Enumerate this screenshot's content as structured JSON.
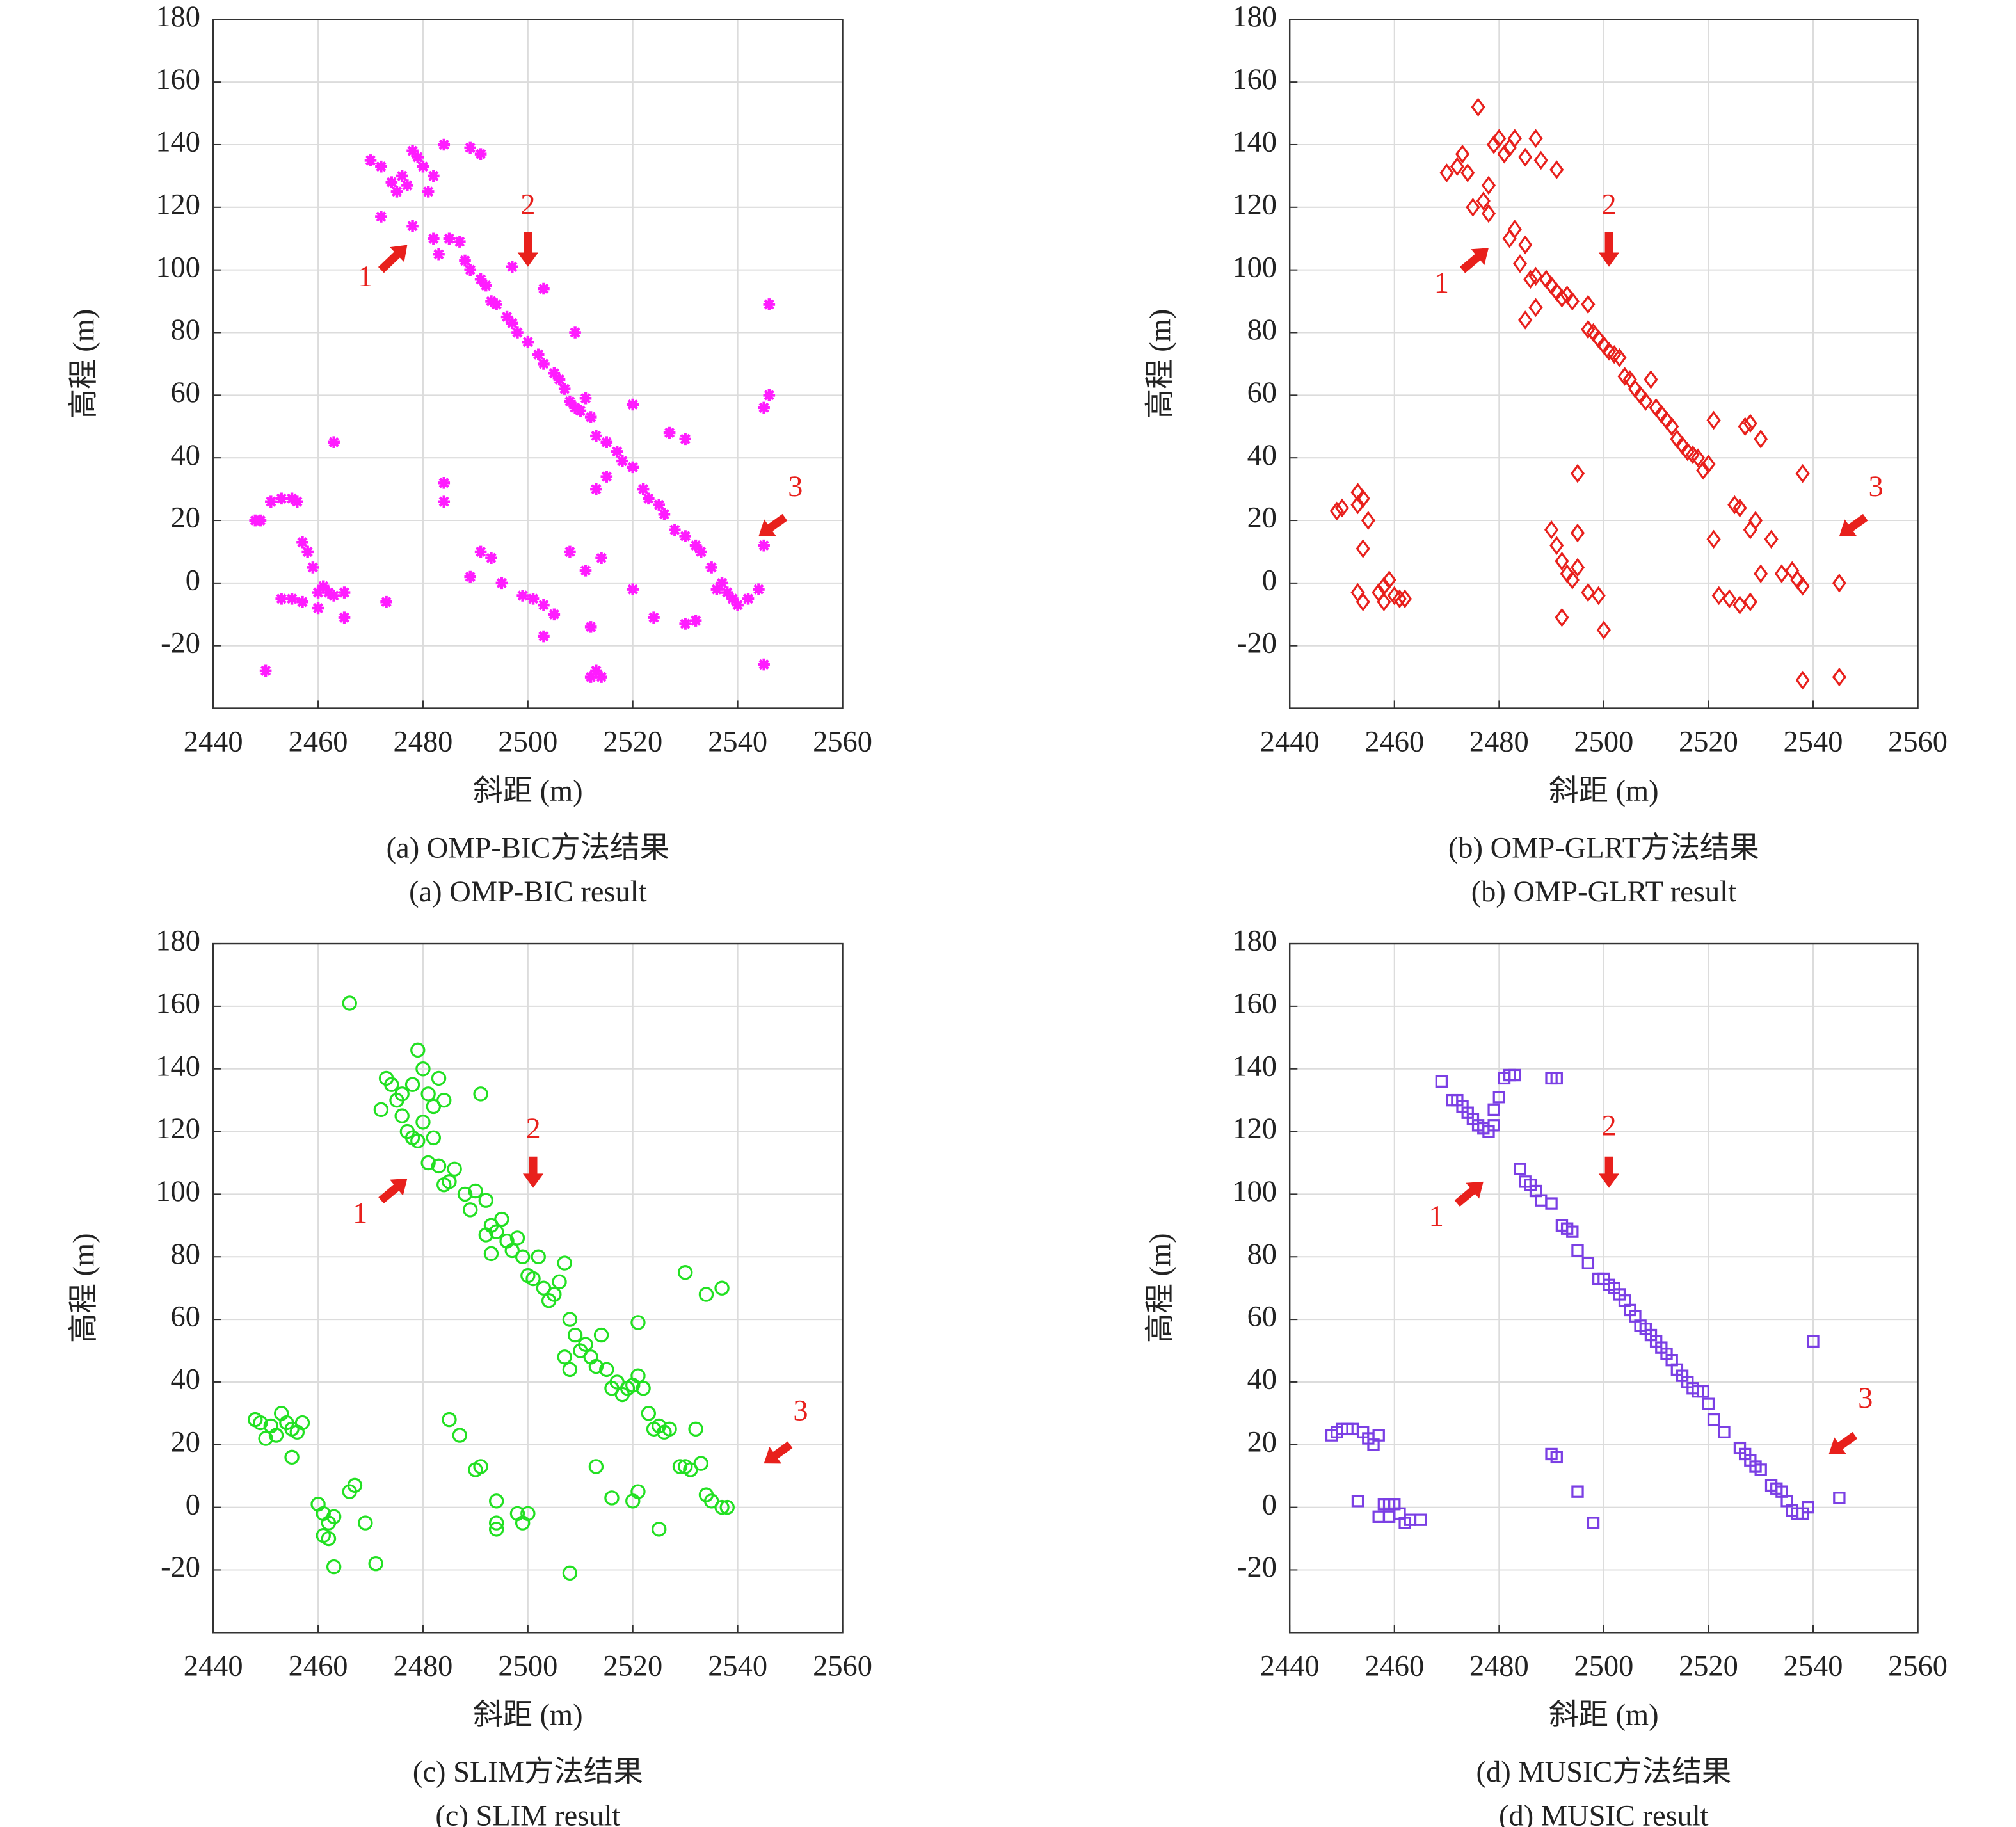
{
  "chart_data": [
    {
      "type": "scatter",
      "caption": [
        "(a) OMP-BIC方法结果",
        "(a) OMP-BIC result"
      ],
      "xlabel": "斜距 (m)",
      "ylabel": "高程 (m)",
      "color": "#ff1cff",
      "marker": "asterisk",
      "grid": true,
      "xlim": [
        2440,
        2560
      ],
      "xticks": [
        2440,
        2460,
        2480,
        2500,
        2520,
        2540,
        2560
      ],
      "ylim": [
        -40,
        180
      ],
      "yticks": [
        -20,
        0,
        20,
        40,
        60,
        80,
        100,
        120,
        140,
        160,
        180
      ],
      "annotations": [
        "1",
        "2",
        "3"
      ],
      "x": [
        2470,
        2472,
        2474,
        2475,
        2476,
        2477,
        2478,
        2479,
        2480,
        2481,
        2482,
        2484,
        2489,
        2491,
        2472,
        2478,
        2482,
        2483,
        2485,
        2487,
        2488,
        2489,
        2491,
        2492,
        2493,
        2494,
        2496,
        2497,
        2498,
        2500,
        2502,
        2503,
        2505,
        2506,
        2507,
        2508,
        2509,
        2510,
        2512,
        2513,
        2515,
        2517,
        2518,
        2520,
        2522,
        2523,
        2525,
        2526,
        2528,
        2530,
        2532,
        2533,
        2535,
        2537,
        2538,
        2539,
        2540,
        2542,
        2544,
        2545,
        2497,
        2503,
        2509,
        2511,
        2513,
        2515,
        2520,
        2527,
        2530,
        2536,
        2448,
        2449,
        2451,
        2453,
        2455,
        2456,
        2457,
        2458,
        2459,
        2455,
        2453,
        2457,
        2460,
        2461,
        2462,
        2463,
        2465,
        2460,
        2465,
        2463,
        2450,
        2473,
        2484,
        2484,
        2489,
        2491,
        2493,
        2495,
        2499,
        2501,
        2503,
        2505,
        2503,
        2508,
        2511,
        2512,
        2513,
        2514,
        2512,
        2514,
        2520,
        2524,
        2530,
        2532,
        2546,
        2546,
        2545,
        2545
      ],
      "values": [
        135,
        133,
        128,
        125,
        130,
        127,
        138,
        136,
        133,
        125,
        130,
        140,
        139,
        137,
        117,
        114,
        110,
        105,
        110,
        109,
        103,
        100,
        97,
        95,
        90,
        89,
        85,
        83,
        80,
        77,
        73,
        70,
        67,
        65,
        62,
        58,
        56,
        55,
        53,
        47,
        45,
        42,
        39,
        37,
        30,
        27,
        25,
        22,
        17,
        15,
        12,
        10,
        5,
        0,
        -3,
        -5,
        -7,
        -5,
        -2,
        12,
        101,
        94,
        80,
        59,
        30,
        34,
        57,
        48,
        46,
        -2,
        20,
        20,
        26,
        27,
        27,
        26,
        13,
        10,
        5,
        -5,
        -5,
        -6,
        -3,
        -1,
        -3,
        -4,
        -3,
        -8,
        -11,
        45,
        -28,
        -6,
        32,
        26,
        2,
        10,
        8,
        0,
        -4,
        -5,
        -7,
        -10,
        -17,
        10,
        4,
        -14,
        -28,
        -30,
        -30,
        8,
        -2,
        -11,
        -13,
        -12,
        89,
        60,
        56,
        -26
      ]
    },
    {
      "type": "scatter",
      "caption": [
        "(b) OMP-GLRT方法结果",
        "(b) OMP-GLRT result"
      ],
      "xlabel": "斜距 (m)",
      "ylabel": "高程 (m)",
      "color": "#e8201c",
      "marker": "diamond",
      "grid": true,
      "xlim": [
        2440,
        2560
      ],
      "xticks": [
        2440,
        2460,
        2480,
        2500,
        2520,
        2540,
        2560
      ],
      "ylim": [
        -40,
        180
      ],
      "yticks": [
        -20,
        0,
        20,
        40,
        60,
        80,
        100,
        120,
        140,
        160,
        180
      ],
      "annotations": [
        "1",
        "2",
        "3"
      ],
      "x": [
        2470,
        2472,
        2474,
        2475,
        2476,
        2477,
        2478,
        2479,
        2480,
        2481,
        2482,
        2483,
        2485,
        2487,
        2488,
        2491,
        2478,
        2473,
        2482,
        2483,
        2485,
        2484,
        2486,
        2487,
        2489,
        2490,
        2491,
        2492,
        2493,
        2494,
        2497,
        2487,
        2485,
        2497,
        2498,
        2499,
        2500,
        2501,
        2502,
        2503,
        2504,
        2505,
        2506,
        2507,
        2508,
        2509,
        2510,
        2511,
        2512,
        2513,
        2514,
        2515,
        2516,
        2517,
        2518,
        2519,
        2520,
        2521,
        2525,
        2526,
        2527,
        2528,
        2530,
        2521,
        2522,
        2524,
        2526,
        2528,
        2528,
        2529,
        2530,
        2532,
        2534,
        2536,
        2537,
        2538,
        2538,
        2538,
        2545,
        2545,
        2449,
        2450,
        2453,
        2454,
        2453,
        2455,
        2454,
        2453,
        2454,
        2457,
        2458,
        2459,
        2460,
        2461,
        2462,
        2458,
        2490,
        2491,
        2492,
        2493,
        2494,
        2495,
        2495,
        2495,
        2497,
        2499,
        2492,
        2500
      ],
      "values": [
        131,
        133,
        131,
        120,
        152,
        122,
        118,
        140,
        142,
        137,
        139,
        142,
        136,
        142,
        135,
        132,
        127,
        137,
        110,
        113,
        108,
        102,
        97,
        98,
        97,
        95,
        93,
        91,
        92,
        90,
        89,
        88,
        84,
        81,
        80,
        78,
        76,
        74,
        73,
        72,
        66,
        65,
        62,
        60,
        58,
        65,
        56,
        54,
        52,
        50,
        46,
        44,
        42,
        41,
        40,
        36,
        38,
        52,
        25,
        24,
        50,
        51,
        46,
        14,
        -4,
        -5,
        -7,
        -6,
        17,
        20,
        3,
        14,
        3,
        4,
        1,
        -1,
        35,
        -31,
        0,
        -30,
        23,
        24,
        25,
        27,
        29,
        20,
        11,
        -3,
        -6,
        -3,
        -1,
        1,
        -4,
        -5,
        -5,
        -6,
        17,
        12,
        7,
        3,
        1,
        5,
        16,
        35,
        -3,
        -4,
        -11,
        -15
      ]
    },
    {
      "type": "scatter",
      "caption": [
        "(c) SLIM方法结果",
        "(c) SLIM result"
      ],
      "xlabel": "斜距 (m)",
      "ylabel": "高程 (m)",
      "color": "#22e022",
      "marker": "circle",
      "grid": true,
      "xlim": [
        2440,
        2560
      ],
      "xticks": [
        2440,
        2460,
        2480,
        2500,
        2520,
        2540,
        2560
      ],
      "ylim": [
        -40,
        180
      ],
      "yticks": [
        -20,
        0,
        20,
        40,
        60,
        80,
        100,
        120,
        140,
        160,
        180
      ],
      "annotations": [
        "1",
        "2",
        "3"
      ],
      "x": [
        2466,
        2472,
        2473,
        2474,
        2475,
        2476,
        2477,
        2478,
        2479,
        2480,
        2481,
        2482,
        2483,
        2484,
        2476,
        2478,
        2479,
        2480,
        2482,
        2481,
        2483,
        2484,
        2485,
        2486,
        2488,
        2489,
        2490,
        2491,
        2492,
        2493,
        2494,
        2495,
        2496,
        2497,
        2498,
        2499,
        2500,
        2501,
        2502,
        2503,
        2504,
        2505,
        2506,
        2507,
        2508,
        2509,
        2510,
        2511,
        2512,
        2513,
        2514,
        2515,
        2516,
        2517,
        2518,
        2519,
        2520,
        2521,
        2522,
        2523,
        2524,
        2525,
        2526,
        2527,
        2529,
        2530,
        2531,
        2532,
        2533,
        2534,
        2535,
        2537,
        2538,
        2530,
        2534,
        2537,
        2521,
        2507,
        2508,
        2493,
        2492,
        2448,
        2449,
        2450,
        2451,
        2452,
        2453,
        2454,
        2455,
        2456,
        2457,
        2455,
        2460,
        2461,
        2462,
        2461,
        2463,
        2462,
        2466,
        2467,
        2469,
        2463,
        2471,
        2485,
        2487,
        2490,
        2491,
        2494,
        2494,
        2494,
        2498,
        2499,
        2500,
        2508,
        2513,
        2516,
        2520,
        2521,
        2525
      ],
      "values": [
        161,
        127,
        137,
        135,
        130,
        125,
        120,
        118,
        146,
        140,
        132,
        128,
        137,
        130,
        132,
        135,
        117,
        123,
        118,
        110,
        109,
        103,
        104,
        108,
        100,
        95,
        101,
        132,
        98,
        90,
        88,
        92,
        85,
        82,
        86,
        80,
        74,
        73,
        80,
        70,
        66,
        68,
        72,
        78,
        60,
        55,
        50,
        52,
        48,
        45,
        55,
        44,
        38,
        40,
        36,
        38,
        39,
        42,
        38,
        30,
        25,
        26,
        24,
        25,
        13,
        13,
        12,
        25,
        14,
        4,
        2,
        0,
        0,
        75,
        68,
        70,
        59,
        48,
        44,
        81,
        87,
        28,
        27,
        22,
        26,
        23,
        30,
        27,
        25,
        24,
        27,
        16,
        1,
        -2,
        -5,
        -9,
        -3,
        -10,
        5,
        7,
        -5,
        -19,
        -18,
        28,
        23,
        12,
        13,
        2,
        -5,
        -7,
        -2,
        -5,
        -2,
        -21,
        13,
        3,
        2,
        5,
        -7
      ]
    },
    {
      "type": "scatter",
      "caption": [
        "(d) MUSIC方法结果",
        "(d) MUSIC result"
      ],
      "xlabel": "斜距 (m)",
      "ylabel": "高程 (m)",
      "color": "#7b3fe4",
      "marker": "square",
      "grid": true,
      "xlim": [
        2440,
        2560
      ],
      "xticks": [
        2440,
        2460,
        2480,
        2500,
        2520,
        2540,
        2560
      ],
      "ylim": [
        -40,
        180
      ],
      "yticks": [
        -20,
        0,
        20,
        40,
        60,
        80,
        100,
        120,
        140,
        160,
        180
      ],
      "annotations": [
        "1",
        "2",
        "3"
      ],
      "x": [
        2469,
        2471,
        2472,
        2473,
        2474,
        2475,
        2476,
        2477,
        2478,
        2479,
        2479,
        2480,
        2481,
        2482,
        2483,
        2490,
        2491,
        2484,
        2485,
        2486,
        2487,
        2488,
        2490,
        2492,
        2493,
        2494,
        2495,
        2497,
        2499,
        2500,
        2501,
        2502,
        2503,
        2504,
        2505,
        2506,
        2507,
        2508,
        2509,
        2510,
        2511,
        2512,
        2513,
        2514,
        2515,
        2516,
        2517,
        2518,
        2519,
        2520,
        2521,
        2523,
        2526,
        2527,
        2528,
        2529,
        2530,
        2532,
        2533,
        2534,
        2535,
        2536,
        2537,
        2538,
        2539,
        2540,
        2545,
        2448,
        2449,
        2450,
        2451,
        2452,
        2454,
        2455,
        2456,
        2457,
        2453,
        2457,
        2458,
        2459,
        2460,
        2461,
        2462,
        2463,
        2465,
        2459,
        2490,
        2491,
        2495,
        2498
      ],
      "values": [
        136,
        130,
        130,
        128,
        126,
        124,
        122,
        121,
        120,
        122,
        127,
        131,
        137,
        138,
        138,
        137,
        137,
        108,
        104,
        103,
        101,
        98,
        97,
        90,
        89,
        88,
        82,
        78,
        73,
        73,
        71,
        70,
        68,
        66,
        63,
        61,
        58,
        57,
        55,
        53,
        51,
        49,
        47,
        44,
        42,
        40,
        38,
        37,
        37,
        33,
        28,
        24,
        19,
        17,
        15,
        13,
        12,
        7,
        6,
        5,
        2,
        -1,
        -2,
        -2,
        0,
        53,
        3,
        23,
        24,
        25,
        25,
        25,
        24,
        22,
        20,
        23,
        2,
        -3,
        1,
        1,
        1,
        -2,
        -5,
        -4,
        -4,
        -3,
        17,
        16,
        5,
        -5
      ]
    }
  ]
}
